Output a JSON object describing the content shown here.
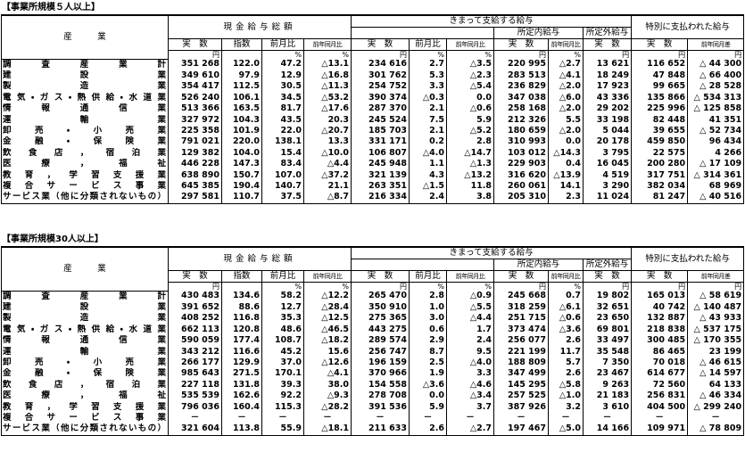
{
  "sections": [
    {
      "title": "【事業所規模５人以上】",
      "header": {
        "industry": "産　　　業",
        "cash_total": "現金給与総額",
        "regular": "きまって支給する給与",
        "scheduled": "所定内給与",
        "overtime": "所定外給与",
        "special": "特別に支払われた給与",
        "columns": [
          "実　数",
          "指数",
          "前月比",
          "前年同月比",
          "実　数",
          "前月比",
          "前年同月比",
          "実　数",
          "前年同月比",
          "実　数",
          "実　数",
          "前年同月差"
        ]
      },
      "units": [
        "円",
        "",
        "%",
        "%",
        "円",
        "%",
        "%",
        "円",
        "%",
        "円",
        "円",
        "円"
      ],
      "rows": [
        {
          "industry": "調査産業計",
          "cells": [
            "351 268",
            "122.0",
            "47.2",
            "△13.1",
            "234 616",
            "2.7",
            "△3.5",
            "220 995",
            "△2.7",
            "13 621",
            "116 652",
            "△ 44 300"
          ]
        },
        {
          "industry": "建設業",
          "cells": [
            "349 610",
            "97.9",
            "12.9",
            "△16.8",
            "301 762",
            "5.3",
            "△2.3",
            "283 513",
            "△4.1",
            "18 249",
            "47 848",
            "△ 66 400"
          ]
        },
        {
          "industry": "製造業",
          "cells": [
            "354 417",
            "112.5",
            "30.5",
            "△11.3",
            "254 752",
            "3.3",
            "△5.4",
            "236 829",
            "△2.0",
            "17 923",
            "99 665",
            "△ 28 528"
          ]
        },
        {
          "industry": "電気・ガス・熱供給・水道業",
          "cells": [
            "526 240",
            "106.1",
            "34.5",
            "△53.2",
            "390 374",
            "△0.3",
            "0.0",
            "347 038",
            "△6.0",
            "43 336",
            "135 866",
            "△ 534 313"
          ]
        },
        {
          "industry": "情報通信業",
          "cells": [
            "513 366",
            "163.5",
            "81.7",
            "△17.6",
            "287 370",
            "2.1",
            "△0.6",
            "258 168",
            "△2.0",
            "29 202",
            "225 996",
            "△ 125 858"
          ]
        },
        {
          "industry": "運輸業",
          "cells": [
            "327 972",
            "104.3",
            "43.5",
            "20.3",
            "245 524",
            "7.5",
            "5.9",
            "212 326",
            "5.5",
            "33 198",
            "82 448",
            "41 351"
          ]
        },
        {
          "industry": "卸売・小売業",
          "cells": [
            "225 358",
            "101.9",
            "22.0",
            "△20.7",
            "185 703",
            "2.1",
            "△5.2",
            "180 659",
            "△2.0",
            "5 044",
            "39 655",
            "△ 52 734"
          ]
        },
        {
          "industry": "金融・保険業",
          "cells": [
            "791 021",
            "220.0",
            "138.1",
            "13.3",
            "331 171",
            "0.2",
            "2.8",
            "310 993",
            "0.0",
            "20 178",
            "459 850",
            "96 434"
          ]
        },
        {
          "industry": "飲食店，宿泊業",
          "cells": [
            "129 382",
            "104.0",
            "15.4",
            "△10.0",
            "106 807",
            "△4.0",
            "△14.7",
            "103 012",
            "△14.3",
            "3 795",
            "22 575",
            "4 266"
          ]
        },
        {
          "industry": "医療，福祉",
          "cells": [
            "446 228",
            "147.3",
            "83.4",
            "△4.4",
            "245 948",
            "1.1",
            "△1.3",
            "229 903",
            "0.4",
            "16 045",
            "200 280",
            "△ 17 109"
          ]
        },
        {
          "industry": "教育，学習支援業",
          "cells": [
            "638 890",
            "150.7",
            "107.0",
            "△37.2",
            "321 139",
            "4.3",
            "△13.2",
            "316 620",
            "△13.9",
            "4 519",
            "317 751",
            "△ 314 361"
          ]
        },
        {
          "industry": "複合サービス事業",
          "cells": [
            "645 385",
            "190.4",
            "140.7",
            "21.1",
            "263 351",
            "△1.5",
            "11.8",
            "260 061",
            "14.1",
            "3 290",
            "382 034",
            "68 969"
          ]
        },
        {
          "industry": "サービス業（他に分類されないもの）",
          "cells": [
            "297 581",
            "110.7",
            "37.5",
            "△8.7",
            "216 334",
            "2.4",
            "3.8",
            "205 310",
            "2.3",
            "11 024",
            "81 247",
            "△ 40 516"
          ]
        }
      ]
    },
    {
      "title": "【事業所規模30人以上】",
      "header": {
        "industry": "産　　　業",
        "cash_total": "現金給与総額",
        "regular": "きまって支給する給与",
        "scheduled": "所定内給与",
        "overtime": "所定外給与",
        "special": "特別に支払われた給与",
        "columns": [
          "実　数",
          "指数",
          "前月比",
          "前年同月比",
          "実　数",
          "前月比",
          "前年同月比",
          "実　数",
          "前年同月比",
          "実　数",
          "実　数",
          "前年同月差"
        ]
      },
      "units": [
        "円",
        "",
        "%",
        "%",
        "円",
        "%",
        "%",
        "円",
        "%",
        "円",
        "円",
        "円"
      ],
      "rows": [
        {
          "industry": "調査産業計",
          "cells": [
            "430 483",
            "134.6",
            "58.2",
            "△12.2",
            "265 470",
            "2.8",
            "△0.9",
            "245 668",
            "0.7",
            "19 802",
            "165 013",
            "△ 58 619"
          ]
        },
        {
          "industry": "建設業",
          "cells": [
            "391 652",
            "88.6",
            "12.7",
            "△28.4",
            "350 910",
            "1.0",
            "△5.5",
            "318 259",
            "△6.1",
            "32 651",
            "40 742",
            "△ 140 487"
          ]
        },
        {
          "industry": "製造業",
          "cells": [
            "408 252",
            "116.8",
            "35.3",
            "△12.5",
            "275 365",
            "3.0",
            "△4.4",
            "251 715",
            "△0.6",
            "23 650",
            "132 887",
            "△ 43 933"
          ]
        },
        {
          "industry": "電気・ガス・熱供給・水道業",
          "cells": [
            "662 113",
            "120.8",
            "48.6",
            "△46.5",
            "443 275",
            "0.6",
            "1.7",
            "373 474",
            "△3.6",
            "69 801",
            "218 838",
            "△ 537 175"
          ]
        },
        {
          "industry": "情報通信業",
          "cells": [
            "590 059",
            "177.4",
            "108.7",
            "△18.2",
            "289 574",
            "2.9",
            "2.4",
            "256 077",
            "2.6",
            "33 497",
            "300 485",
            "△ 170 355"
          ]
        },
        {
          "industry": "運輸業",
          "cells": [
            "343 212",
            "116.6",
            "45.2",
            "15.6",
            "256 747",
            "8.7",
            "9.5",
            "221 199",
            "11.7",
            "35 548",
            "86 465",
            "23 199"
          ]
        },
        {
          "industry": "卸売・小売業",
          "cells": [
            "266 177",
            "129.9",
            "37.0",
            "△12.6",
            "196 159",
            "2.5",
            "△4.0",
            "188 809",
            "5.7",
            "7 350",
            "70 018",
            "△ 46 615"
          ]
        },
        {
          "industry": "金融・保険業",
          "cells": [
            "985 643",
            "271.5",
            "170.1",
            "△4.1",
            "370 966",
            "1.9",
            "3.3",
            "347 499",
            "2.6",
            "23 467",
            "614 677",
            "△ 14 597"
          ]
        },
        {
          "industry": "飲食店，宿泊業",
          "cells": [
            "227 118",
            "131.8",
            "39.3",
            "38.0",
            "154 558",
            "△3.6",
            "△4.6",
            "145 295",
            "△5.8",
            "9 263",
            "72 560",
            "64 133"
          ]
        },
        {
          "industry": "医療，福祉",
          "cells": [
            "535 539",
            "162.6",
            "92.2",
            "△9.3",
            "278 708",
            "0.0",
            "△3.4",
            "257 525",
            "△1.0",
            "21 183",
            "256 831",
            "△ 46 334"
          ]
        },
        {
          "industry": "教育，学習支援業",
          "cells": [
            "796 036",
            "160.4",
            "115.3",
            "△28.2",
            "391 536",
            "5.9",
            "3.7",
            "387 926",
            "3.2",
            "3 610",
            "404 500",
            "△ 299 240"
          ]
        },
        {
          "industry": "複合サービス事業",
          "cells": [
            "－",
            "－",
            "－",
            "－",
            "－",
            "－",
            "－",
            "－",
            "－",
            "－",
            "－",
            "－"
          ]
        },
        {
          "industry": "サービス業（他に分類されないもの）",
          "cells": [
            "321 604",
            "113.8",
            "55.9",
            "△18.1",
            "211 633",
            "2.6",
            "△2.7",
            "197 467",
            "△5.0",
            "14 166",
            "109 971",
            "△ 78 809"
          ]
        }
      ]
    }
  ]
}
